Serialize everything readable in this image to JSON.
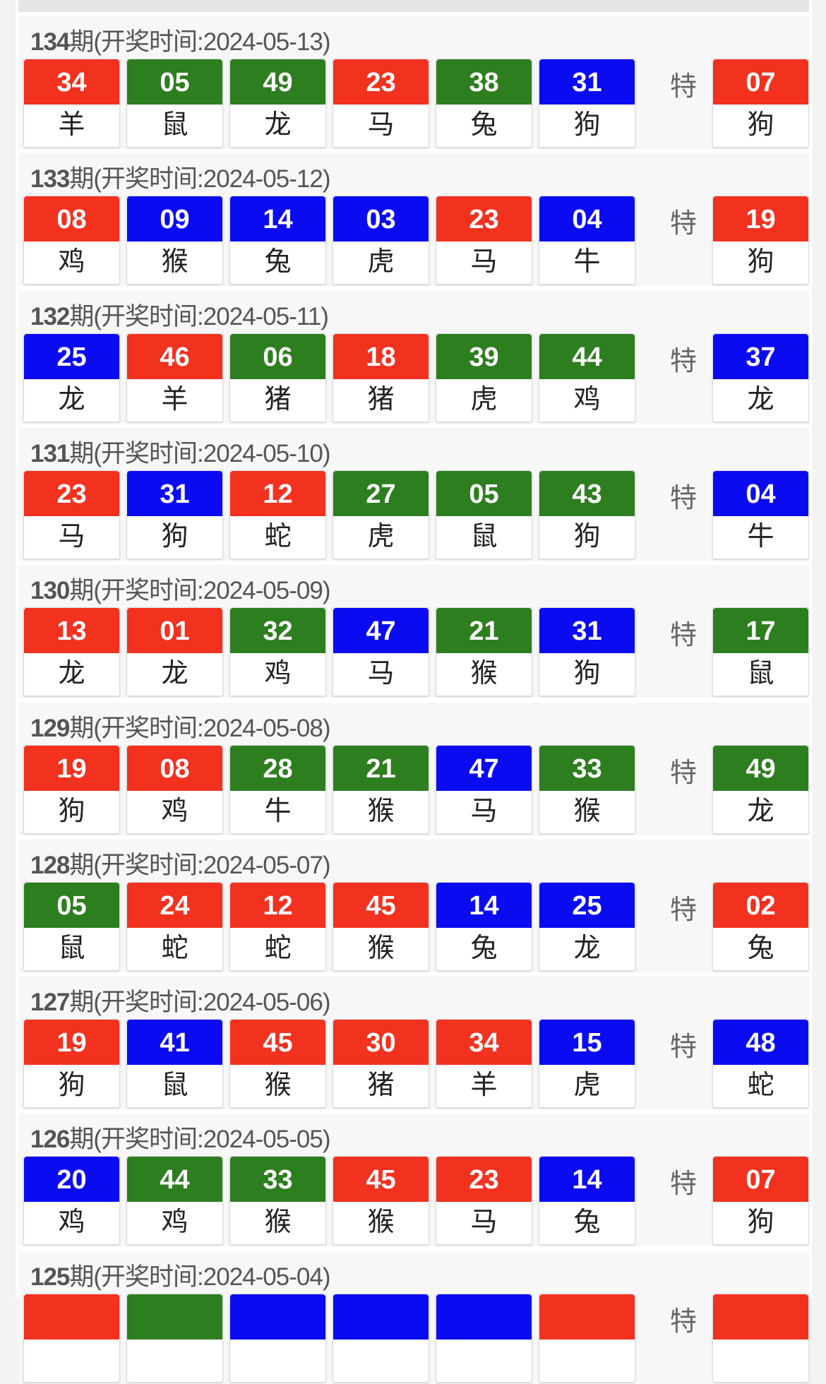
{
  "special_label": "特",
  "colors": {
    "red": "#f2311f",
    "green": "#2d7e1f",
    "blue": "#0b0bf2"
  },
  "draws": [
    {
      "period": "134",
      "suffix": "期(开奖时间:2024-05-13)",
      "balls": [
        [
          "34",
          "red",
          "羊"
        ],
        [
          "05",
          "green",
          "鼠"
        ],
        [
          "49",
          "green",
          "龙"
        ],
        [
          "23",
          "red",
          "马"
        ],
        [
          "38",
          "green",
          "兔"
        ],
        [
          "31",
          "blue",
          "狗"
        ]
      ],
      "special": [
        "07",
        "red",
        "狗"
      ]
    },
    {
      "period": "133",
      "suffix": "期(开奖时间:2024-05-12)",
      "balls": [
        [
          "08",
          "red",
          "鸡"
        ],
        [
          "09",
          "blue",
          "猴"
        ],
        [
          "14",
          "blue",
          "兔"
        ],
        [
          "03",
          "blue",
          "虎"
        ],
        [
          "23",
          "red",
          "马"
        ],
        [
          "04",
          "blue",
          "牛"
        ]
      ],
      "special": [
        "19",
        "red",
        "狗"
      ]
    },
    {
      "period": "132",
      "suffix": "期(开奖时间:2024-05-11)",
      "balls": [
        [
          "25",
          "blue",
          "龙"
        ],
        [
          "46",
          "red",
          "羊"
        ],
        [
          "06",
          "green",
          "猪"
        ],
        [
          "18",
          "red",
          "猪"
        ],
        [
          "39",
          "green",
          "虎"
        ],
        [
          "44",
          "green",
          "鸡"
        ]
      ],
      "special": [
        "37",
        "blue",
        "龙"
      ]
    },
    {
      "period": "131",
      "suffix": "期(开奖时间:2024-05-10)",
      "balls": [
        [
          "23",
          "red",
          "马"
        ],
        [
          "31",
          "blue",
          "狗"
        ],
        [
          "12",
          "red",
          "蛇"
        ],
        [
          "27",
          "green",
          "虎"
        ],
        [
          "05",
          "green",
          "鼠"
        ],
        [
          "43",
          "green",
          "狗"
        ]
      ],
      "special": [
        "04",
        "blue",
        "牛"
      ]
    },
    {
      "period": "130",
      "suffix": "期(开奖时间:2024-05-09)",
      "balls": [
        [
          "13",
          "red",
          "龙"
        ],
        [
          "01",
          "red",
          "龙"
        ],
        [
          "32",
          "green",
          "鸡"
        ],
        [
          "47",
          "blue",
          "马"
        ],
        [
          "21",
          "green",
          "猴"
        ],
        [
          "31",
          "blue",
          "狗"
        ]
      ],
      "special": [
        "17",
        "green",
        "鼠"
      ]
    },
    {
      "period": "129",
      "suffix": "期(开奖时间:2024-05-08)",
      "balls": [
        [
          "19",
          "red",
          "狗"
        ],
        [
          "08",
          "red",
          "鸡"
        ],
        [
          "28",
          "green",
          "牛"
        ],
        [
          "21",
          "green",
          "猴"
        ],
        [
          "47",
          "blue",
          "马"
        ],
        [
          "33",
          "green",
          "猴"
        ]
      ],
      "special": [
        "49",
        "green",
        "龙"
      ]
    },
    {
      "period": "128",
      "suffix": "期(开奖时间:2024-05-07)",
      "balls": [
        [
          "05",
          "green",
          "鼠"
        ],
        [
          "24",
          "red",
          "蛇"
        ],
        [
          "12",
          "red",
          "蛇"
        ],
        [
          "45",
          "red",
          "猴"
        ],
        [
          "14",
          "blue",
          "兔"
        ],
        [
          "25",
          "blue",
          "龙"
        ]
      ],
      "special": [
        "02",
        "red",
        "兔"
      ]
    },
    {
      "period": "127",
      "suffix": "期(开奖时间:2024-05-06)",
      "balls": [
        [
          "19",
          "red",
          "狗"
        ],
        [
          "41",
          "blue",
          "鼠"
        ],
        [
          "45",
          "red",
          "猴"
        ],
        [
          "30",
          "red",
          "猪"
        ],
        [
          "34",
          "red",
          "羊"
        ],
        [
          "15",
          "blue",
          "虎"
        ]
      ],
      "special": [
        "48",
        "blue",
        "蛇"
      ]
    },
    {
      "period": "126",
      "suffix": "期(开奖时间:2024-05-05)",
      "balls": [
        [
          "20",
          "blue",
          "鸡"
        ],
        [
          "44",
          "green",
          "鸡"
        ],
        [
          "33",
          "green",
          "猴"
        ],
        [
          "45",
          "red",
          "猴"
        ],
        [
          "23",
          "red",
          "马"
        ],
        [
          "14",
          "blue",
          "兔"
        ]
      ],
      "special": [
        "07",
        "red",
        "狗"
      ]
    },
    {
      "period": "125",
      "suffix": "期(开奖时间:2024-05-04)",
      "balls": [
        [
          "",
          "red",
          ""
        ],
        [
          "",
          "green",
          ""
        ],
        [
          "",
          "blue",
          ""
        ],
        [
          "",
          "blue",
          ""
        ],
        [
          "",
          "blue",
          ""
        ],
        [
          "",
          "red",
          ""
        ]
      ],
      "special": [
        "",
        "red",
        ""
      ]
    }
  ]
}
